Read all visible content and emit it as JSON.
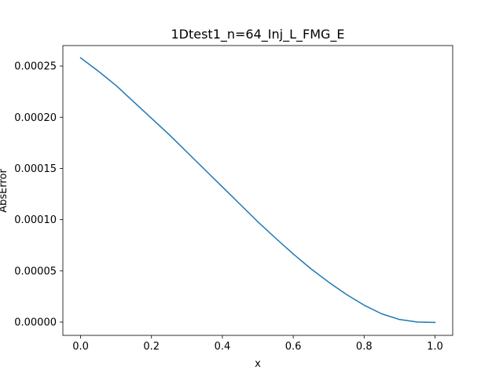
{
  "chart_data": {
    "type": "line",
    "title": "1Dtest1_n=64_Inj_L_FMG_E",
    "xlabel": "x",
    "ylabel": "AbsError",
    "xlim": [
      -0.05,
      1.05
    ],
    "ylim": [
      -1.3e-05,
      0.00027
    ],
    "x_ticks": [
      0.0,
      0.2,
      0.4,
      0.6,
      0.8,
      1.0
    ],
    "x_tick_labels": [
      "0.0",
      "0.2",
      "0.4",
      "0.6",
      "0.8",
      "1.0"
    ],
    "y_ticks": [
      0.0,
      5e-05,
      0.0001,
      0.00015,
      0.0002,
      0.00025
    ],
    "y_tick_labels": [
      "0.00000",
      "0.00005",
      "0.00010",
      "0.00015",
      "0.00020",
      "0.00025"
    ],
    "grid": false,
    "series": [
      {
        "color": "#1f77b4",
        "x": [
          0.0,
          0.05,
          0.1,
          0.15,
          0.2,
          0.25,
          0.3,
          0.35,
          0.4,
          0.45,
          0.5,
          0.55,
          0.6,
          0.65,
          0.7,
          0.75,
          0.8,
          0.85,
          0.9,
          0.95,
          1.0
        ],
        "y": [
          0.000258,
          0.000245,
          0.000231,
          0.000215,
          0.000199,
          0.000183,
          0.000166,
          0.000149,
          0.000132,
          0.000115,
          9.8e-05,
          8.2e-05,
          6.65e-05,
          5.2e-05,
          3.9e-05,
          2.7e-05,
          1.65e-05,
          8e-06,
          2.5e-06,
          0.0,
          -3e-07
        ]
      }
    ]
  }
}
